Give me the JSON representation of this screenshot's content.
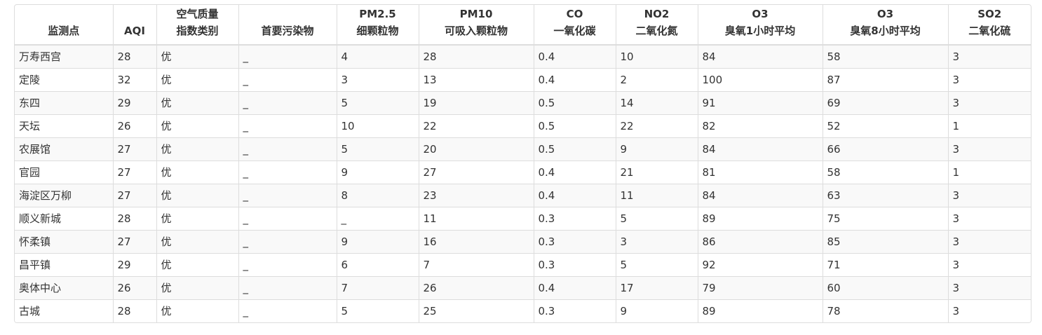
{
  "table": {
    "headers": [
      {
        "lines": [
          "监测点"
        ]
      },
      {
        "lines": [
          "AQI"
        ]
      },
      {
        "lines": [
          "空气质量",
          "指数类别"
        ]
      },
      {
        "lines": [
          "首要污染物"
        ]
      },
      {
        "lines": [
          "PM2.5",
          "细颗粒物"
        ]
      },
      {
        "lines": [
          "PM10",
          "可吸入颗粒物"
        ]
      },
      {
        "lines": [
          "CO",
          "一氧化碳"
        ]
      },
      {
        "lines": [
          "NO2",
          "二氧化氮"
        ]
      },
      {
        "lines": [
          "O3",
          "臭氧1小时平均"
        ]
      },
      {
        "lines": [
          "O3",
          "臭氧8小时平均"
        ]
      },
      {
        "lines": [
          "SO2",
          "二氧化硫"
        ]
      }
    ],
    "rows": [
      [
        "万寿西宫",
        "28",
        "优",
        "_",
        "4",
        "28",
        "0.4",
        "10",
        "84",
        "58",
        "3"
      ],
      [
        "定陵",
        "32",
        "优",
        "_",
        "3",
        "13",
        "0.4",
        "2",
        "100",
        "87",
        "3"
      ],
      [
        "东四",
        "29",
        "优",
        "_",
        "5",
        "19",
        "0.5",
        "14",
        "91",
        "69",
        "3"
      ],
      [
        "天坛",
        "26",
        "优",
        "_",
        "10",
        "22",
        "0.5",
        "22",
        "82",
        "52",
        "1"
      ],
      [
        "农展馆",
        "27",
        "优",
        "_",
        "5",
        "20",
        "0.5",
        "9",
        "84",
        "66",
        "3"
      ],
      [
        "官园",
        "27",
        "优",
        "_",
        "9",
        "27",
        "0.4",
        "21",
        "81",
        "58",
        "1"
      ],
      [
        "海淀区万柳",
        "27",
        "优",
        "_",
        "8",
        "23",
        "0.4",
        "11",
        "84",
        "63",
        "3"
      ],
      [
        "顺义新城",
        "28",
        "优",
        "_",
        "_",
        "11",
        "0.3",
        "5",
        "89",
        "75",
        "3"
      ],
      [
        "怀柔镇",
        "27",
        "优",
        "_",
        "9",
        "16",
        "0.3",
        "3",
        "86",
        "85",
        "3"
      ],
      [
        "昌平镇",
        "29",
        "优",
        "_",
        "6",
        "7",
        "0.3",
        "5",
        "92",
        "71",
        "3"
      ],
      [
        "奥体中心",
        "26",
        "优",
        "_",
        "7",
        "26",
        "0.4",
        "17",
        "79",
        "60",
        "3"
      ],
      [
        "古城",
        "28",
        "优",
        "_",
        "5",
        "25",
        "0.3",
        "9",
        "89",
        "78",
        "3"
      ]
    ]
  }
}
